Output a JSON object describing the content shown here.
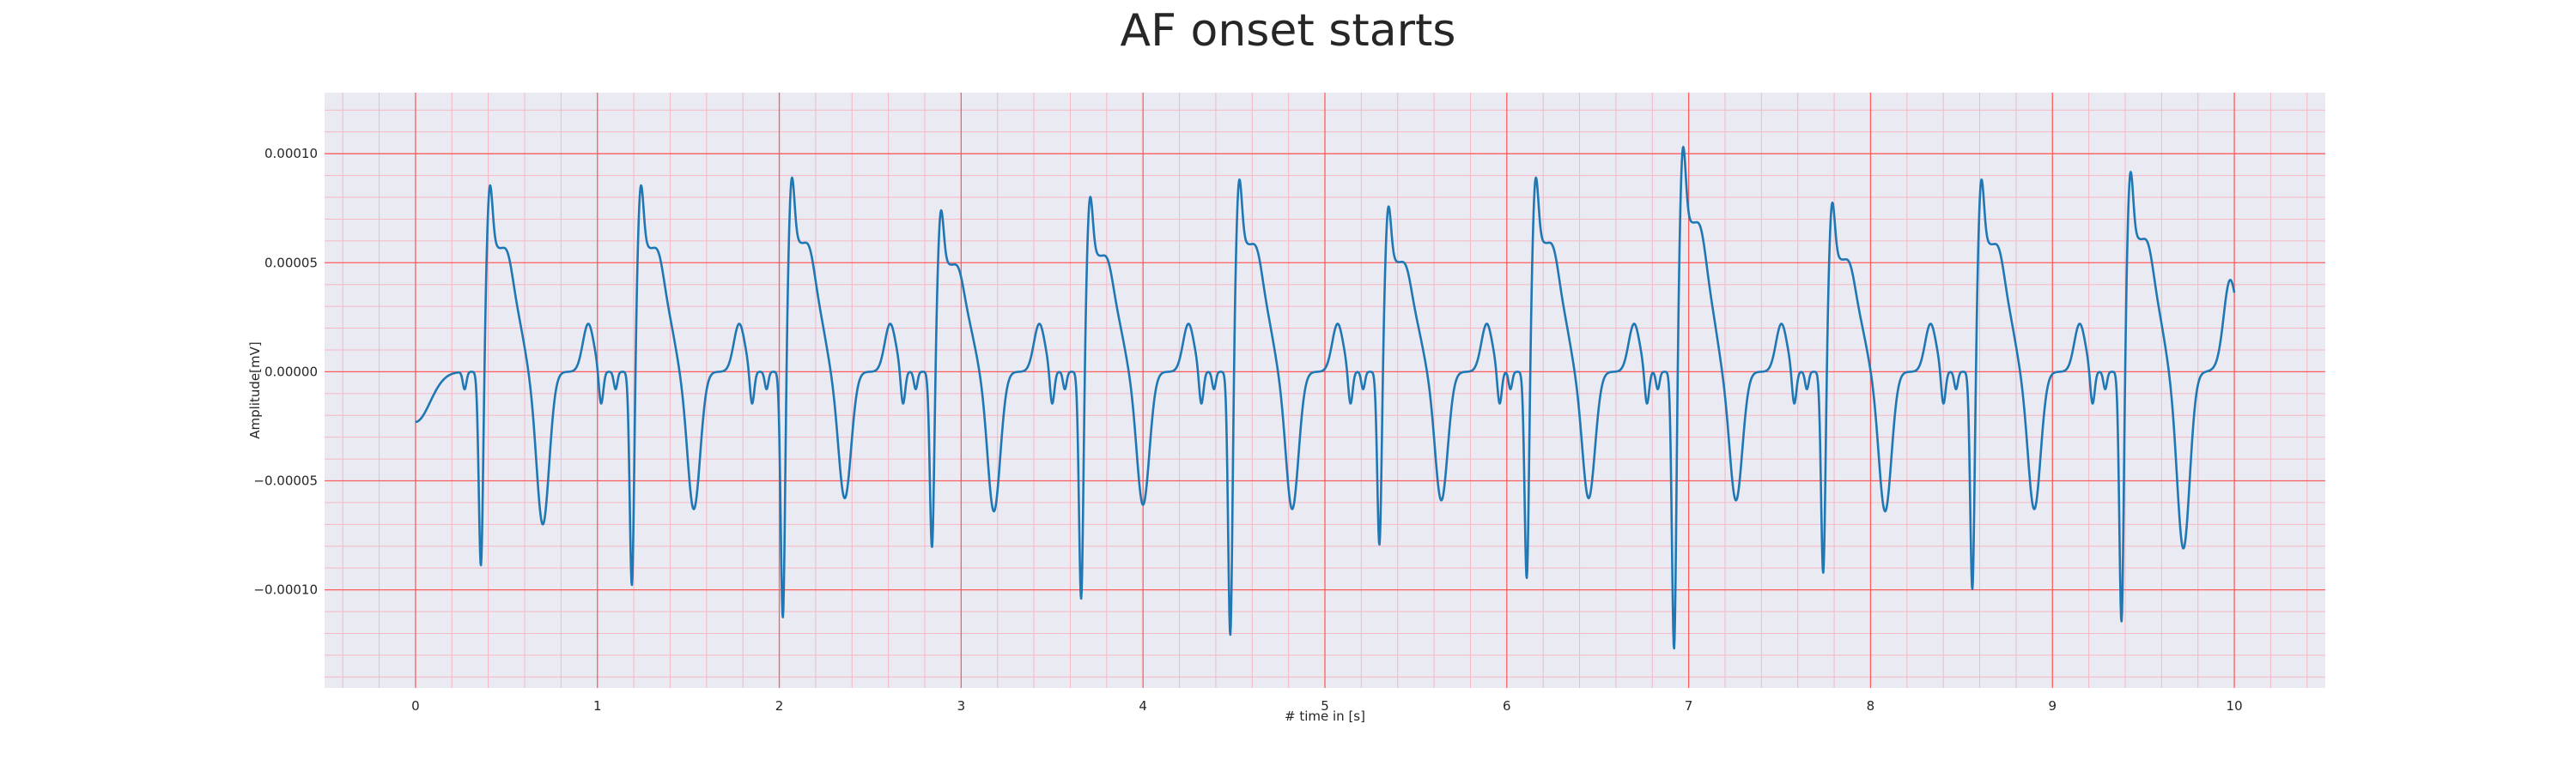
{
  "chart_data": {
    "type": "line",
    "title": "AF onset starts",
    "xlabel": "# time in [s]",
    "ylabel": "Amplitude[mV]",
    "xlim": [
      -0.5,
      10.5
    ],
    "ylim": [
      -0.000145,
      0.000128
    ],
    "x_ticks": [
      0,
      1,
      2,
      3,
      4,
      5,
      6,
      7,
      8,
      9,
      10
    ],
    "x_tick_labels": [
      "0",
      "1",
      "2",
      "3",
      "4",
      "5",
      "6",
      "7",
      "8",
      "9",
      "10"
    ],
    "y_ticks": [
      0.0001,
      5e-05,
      0.0,
      -5e-05,
      -0.0001
    ],
    "y_tick_labels": [
      "0.00010",
      "0.00005",
      "0.00000",
      "−0.00005",
      "−0.00010"
    ],
    "grid": {
      "major": true,
      "minor": true,
      "major_color": "#ff5c5c",
      "minor_color": "#f5b8c4"
    },
    "plot_background": "#eaeaf2",
    "series": [
      {
        "color": "#1f77b4",
        "beats": [
          {
            "t": 0.4,
            "r": 9.7e-05,
            "s": -7e-05,
            "ppre": -9.3e-05
          },
          {
            "t": 1.23,
            "r": 9.7e-05,
            "s": -6.3e-05,
            "ppre": -0.000102
          },
          {
            "t": 2.06,
            "r": 0.000101,
            "s": -5.8e-05,
            "ppre": -0.000117
          },
          {
            "t": 2.88,
            "r": 8.4e-05,
            "s": -6.4e-05,
            "ppre": -8.4e-05
          },
          {
            "t": 3.7,
            "r": 9.1e-05,
            "s": -6.1e-05,
            "ppre": -0.000108
          },
          {
            "t": 4.52,
            "r": 0.0001,
            "s": -6.3e-05,
            "ppre": -0.000125
          },
          {
            "t": 5.34,
            "r": 8.6e-05,
            "s": -5.9e-05,
            "ppre": -8.3e-05
          },
          {
            "t": 6.15,
            "r": 0.000101,
            "s": -5.8e-05,
            "ppre": -9.9e-05
          },
          {
            "t": 6.96,
            "r": 0.000117,
            "s": -5.9e-05,
            "ppre": -0.000132
          },
          {
            "t": 7.78,
            "r": 8.8e-05,
            "s": -6.4e-05,
            "ppre": -9.6e-05
          },
          {
            "t": 8.6,
            "r": 0.0001,
            "s": -6.3e-05,
            "ppre": -0.000104
          },
          {
            "t": 9.42,
            "r": 0.000104,
            "s": -8.1e-05,
            "ppre": -0.000119
          }
        ],
        "start": {
          "t": 0.0,
          "y": -2.3e-05
        },
        "end": {
          "t": 10.0,
          "y": 2.3e-05
        }
      }
    ]
  }
}
